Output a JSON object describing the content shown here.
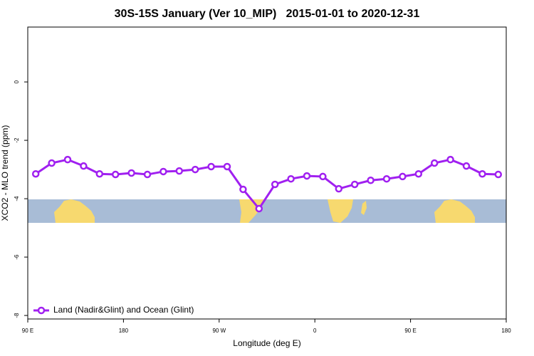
{
  "chart_data": {
    "type": "line",
    "title": "30S-15S January (Ver 10_MIP)   2015-01-01 to 2020-12-31",
    "xlabel": "Longitude (deg E)",
    "ylabel": "XCO2 - MLO trend (ppm)",
    "x": [
      97.5,
      112.5,
      127.5,
      142.5,
      157.5,
      172.5,
      187.5,
      202.5,
      217.5,
      232.5,
      247.5,
      262.5,
      277.5,
      292.5,
      307.5,
      322.5,
      337.5,
      352.5,
      367.5,
      382.5,
      397.5,
      412.5,
      427.5,
      442.5,
      457.5,
      472.5,
      487.5,
      502.5,
      517.5,
      532.5
    ],
    "series": [
      {
        "name": "Land (Nadir&Glint) and Ocean (Glint)",
        "color": "#a020f0",
        "values": [
          -3.15,
          -2.78,
          -2.66,
          -2.88,
          -3.15,
          -3.17,
          -3.12,
          -3.17,
          -3.07,
          -3.05,
          -3.0,
          -2.9,
          -2.9,
          -3.68,
          -4.34,
          -3.51,
          -3.32,
          -3.22,
          -3.24,
          -3.66,
          -3.51,
          -3.37,
          -3.32,
          -3.24,
          -3.15,
          -2.78,
          -2.66,
          -2.88,
          -3.15,
          -3.17
        ]
      }
    ],
    "xlim": [
      90,
      540
    ],
    "xticks": [
      {
        "value": 90,
        "label": "90 E"
      },
      180,
      {
        "value": 270,
        "label": "90 W"
      },
      {
        "value": 360,
        "label": "0"
      },
      {
        "value": 450,
        "label": "90 E"
      },
      {
        "value": 540,
        "label": "180"
      }
    ],
    "ylim": [
      -8.12,
      1.88
    ],
    "yticks": [
      0,
      -2,
      -4,
      -6,
      -8
    ],
    "legend": "bottom-left"
  }
}
